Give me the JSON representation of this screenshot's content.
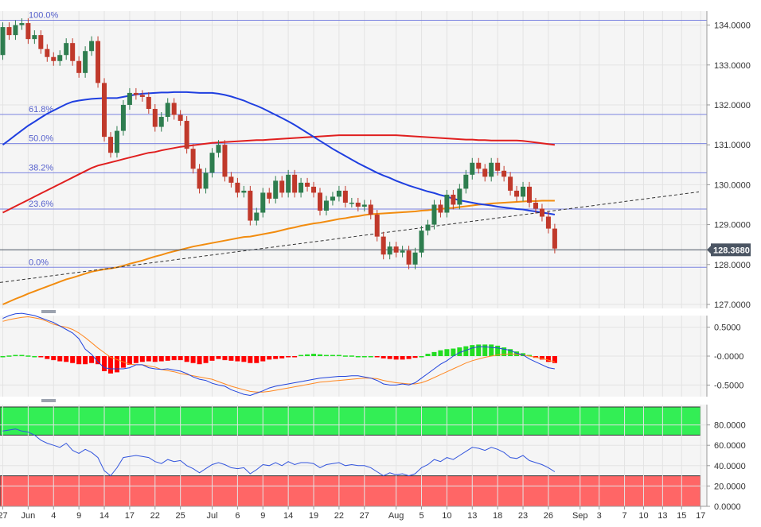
{
  "chart_data": [
    {
      "type": "candlestick",
      "title": "",
      "ylim": [
        126.9,
        134.35
      ],
      "y_ticks": [
        "134.0000",
        "133.0000",
        "132.0000",
        "131.0000",
        "130.0000",
        "129.0000",
        "128.0000",
        "127.0000"
      ],
      "y_tick_values": [
        134,
        133,
        132,
        131,
        130,
        129,
        128,
        127
      ],
      "last_price": {
        "value": 128.368,
        "label": "128.3680",
        "color": "#4b5563"
      },
      "fibonacci": [
        {
          "label": "100.0%",
          "value": 134.12
        },
        {
          "label": "61.8%",
          "value": 131.76
        },
        {
          "label": "50.0%",
          "value": 131.03
        },
        {
          "label": "38.2%",
          "value": 130.3
        },
        {
          "label": "23.6%",
          "value": 129.39
        },
        {
          "label": "0.0%",
          "value": 127.93
        }
      ],
      "candle_colors": {
        "up": "#2e7d4f",
        "down": "#c0392b"
      },
      "sma_colors": {
        "sma_fast": "#f28c0f",
        "sma_mid": "#1f3fe0",
        "sma_slow": "#e01f1f"
      },
      "trendline": {
        "start": 127.55,
        "end": 129.82,
        "color": "#333333"
      },
      "closes": [
        133.95,
        133.75,
        134.0,
        134.05,
        133.65,
        133.75,
        133.4,
        133.2,
        133.1,
        133.25,
        133.55,
        133.1,
        132.8,
        133.35,
        133.6,
        132.55,
        131.2,
        130.8,
        131.35,
        132.0,
        132.3,
        132.25,
        132.2,
        131.9,
        131.45,
        131.7,
        132.05,
        131.75,
        131.6,
        130.9,
        130.4,
        129.9,
        130.3,
        130.8,
        131.0,
        130.2,
        130.05,
        129.8,
        129.85,
        129.1,
        129.3,
        129.8,
        129.65,
        130.1,
        129.8,
        130.25,
        129.8,
        130.05,
        129.95,
        129.8,
        129.35,
        129.6,
        129.7,
        129.85,
        129.55,
        129.55,
        129.45,
        129.5,
        129.25,
        128.7,
        128.25,
        128.45,
        128.3,
        128.35,
        128.0,
        128.3,
        128.85,
        129.0,
        129.5,
        129.3,
        129.75,
        129.5,
        129.9,
        130.25,
        130.55,
        130.4,
        130.2,
        130.55,
        130.35,
        130.2,
        129.85,
        129.7,
        129.95,
        129.55,
        129.4,
        129.2,
        128.9,
        128.4
      ],
      "sma_fast": [
        127.0,
        127.07,
        127.14,
        127.2,
        127.27,
        127.33,
        127.39,
        127.45,
        127.51,
        127.57,
        127.63,
        127.67,
        127.72,
        127.77,
        127.82,
        127.85,
        127.88,
        127.9,
        127.93,
        127.97,
        128.02,
        128.06,
        128.1,
        128.15,
        128.2,
        128.24,
        128.29,
        128.33,
        128.37,
        128.41,
        128.45,
        128.48,
        128.51,
        128.54,
        128.57,
        128.6,
        128.63,
        128.66,
        128.69,
        128.7,
        128.73,
        128.76,
        128.79,
        128.82,
        128.86,
        128.9,
        128.93,
        128.97,
        129.0,
        129.03,
        129.05,
        129.08,
        129.11,
        129.14,
        129.16,
        129.19,
        129.21,
        129.24,
        129.26,
        129.27,
        129.28,
        129.29,
        129.3,
        129.31,
        129.32,
        129.33,
        129.35,
        129.36,
        129.38,
        129.39,
        129.41,
        129.42,
        129.44,
        129.46,
        129.48,
        129.5,
        129.51,
        129.53,
        129.54,
        129.55,
        129.56,
        129.57,
        129.58,
        129.59,
        129.59,
        129.6,
        129.6,
        129.6
      ],
      "sma_mid": [
        131.0,
        131.12,
        131.24,
        131.36,
        131.48,
        131.58,
        131.68,
        131.78,
        131.86,
        131.94,
        132.02,
        132.08,
        132.11,
        132.13,
        132.15,
        132.16,
        132.17,
        132.17,
        132.17,
        132.2,
        132.23,
        132.26,
        132.28,
        132.29,
        132.3,
        132.31,
        132.31,
        132.32,
        132.32,
        132.32,
        132.31,
        132.3,
        132.3,
        132.3,
        132.28,
        132.25,
        132.21,
        132.16,
        132.11,
        132.04,
        131.98,
        131.91,
        131.83,
        131.75,
        131.67,
        131.59,
        131.5,
        131.4,
        131.3,
        131.2,
        131.1,
        131.0,
        130.9,
        130.81,
        130.72,
        130.63,
        130.54,
        130.46,
        130.38,
        130.3,
        130.23,
        130.17,
        130.1,
        130.04,
        129.98,
        129.93,
        129.88,
        129.83,
        129.79,
        129.74,
        129.7,
        129.65,
        129.61,
        129.58,
        129.55,
        129.52,
        129.5,
        129.48,
        129.45,
        129.43,
        129.41,
        129.39,
        129.38,
        129.35,
        129.33,
        129.3,
        129.28,
        129.25
      ],
      "sma_slow": [
        129.3,
        129.38,
        129.46,
        129.54,
        129.62,
        129.7,
        129.78,
        129.86,
        129.94,
        130.02,
        130.1,
        130.18,
        130.26,
        130.34,
        130.42,
        130.48,
        130.52,
        130.56,
        130.6,
        130.64,
        130.68,
        130.72,
        130.76,
        130.8,
        130.82,
        130.86,
        130.89,
        130.92,
        130.95,
        130.97,
        130.99,
        131.01,
        131.03,
        131.05,
        131.06,
        131.07,
        131.08,
        131.09,
        131.1,
        131.11,
        131.12,
        131.12,
        131.13,
        131.14,
        131.15,
        131.16,
        131.17,
        131.18,
        131.19,
        131.2,
        131.21,
        131.22,
        131.23,
        131.24,
        131.24,
        131.24,
        131.24,
        131.24,
        131.24,
        131.24,
        131.24,
        131.24,
        131.24,
        131.23,
        131.22,
        131.21,
        131.2,
        131.19,
        131.18,
        131.17,
        131.16,
        131.15,
        131.14,
        131.13,
        131.13,
        131.12,
        131.12,
        131.11,
        131.11,
        131.11,
        131.11,
        131.11,
        131.1,
        131.08,
        131.06,
        131.04,
        131.02,
        131.0
      ]
    },
    {
      "type": "bar+line",
      "ylim": [
        -0.7,
        0.7
      ],
      "y_ticks": [
        "0.5000",
        "-0.0000",
        "-0.5000"
      ],
      "y_tick_values": [
        0.5,
        0,
        -0.5
      ],
      "colors": {
        "hist_pos": "#22dd22",
        "hist_neg": "#ff0000",
        "macd": "#2244dd",
        "signal": "#ff8822"
      },
      "histogram": [
        0.0,
        0.01,
        0.02,
        0.02,
        0.01,
        0.0,
        -0.02,
        -0.05,
        -0.07,
        -0.09,
        -0.1,
        -0.12,
        -0.14,
        -0.14,
        -0.12,
        -0.14,
        -0.26,
        -0.3,
        -0.28,
        -0.2,
        -0.15,
        -0.12,
        -0.1,
        -0.09,
        -0.1,
        -0.09,
        -0.08,
        -0.07,
        -0.07,
        -0.1,
        -0.12,
        -0.14,
        -0.12,
        -0.08,
        -0.05,
        -0.07,
        -0.08,
        -0.09,
        -0.1,
        -0.12,
        -0.12,
        -0.09,
        -0.06,
        -0.05,
        -0.04,
        -0.02,
        -0.01,
        0.02,
        0.03,
        0.04,
        0.03,
        0.02,
        0.02,
        0.02,
        0.01,
        0.01,
        0.0,
        0.0,
        0.0,
        -0.02,
        -0.04,
        -0.05,
        -0.06,
        -0.06,
        -0.05,
        -0.03,
        0.0,
        0.04,
        0.07,
        0.1,
        0.12,
        0.13,
        0.15,
        0.17,
        0.19,
        0.2,
        0.2,
        0.2,
        0.18,
        0.15,
        0.12,
        0.08,
        0.05,
        0.02,
        -0.03,
        -0.06,
        -0.1,
        -0.12
      ],
      "macd": [
        0.65,
        0.7,
        0.73,
        0.74,
        0.72,
        0.7,
        0.66,
        0.62,
        0.58,
        0.52,
        0.46,
        0.4,
        0.3,
        0.12,
        0.03,
        -0.1,
        -0.2,
        -0.22,
        -0.22,
        -0.22,
        -0.2,
        -0.15,
        -0.15,
        -0.2,
        -0.22,
        -0.23,
        -0.22,
        -0.24,
        -0.26,
        -0.3,
        -0.36,
        -0.4,
        -0.42,
        -0.47,
        -0.5,
        -0.52,
        -0.58,
        -0.62,
        -0.66,
        -0.68,
        -0.64,
        -0.6,
        -0.55,
        -0.52,
        -0.5,
        -0.48,
        -0.46,
        -0.44,
        -0.42,
        -0.4,
        -0.38,
        -0.37,
        -0.36,
        -0.35,
        -0.35,
        -0.34,
        -0.34,
        -0.36,
        -0.38,
        -0.42,
        -0.48,
        -0.5,
        -0.5,
        -0.48,
        -0.5,
        -0.46,
        -0.38,
        -0.3,
        -0.22,
        -0.14,
        -0.08,
        0.0,
        0.06,
        0.1,
        0.14,
        0.16,
        0.16,
        0.15,
        0.14,
        0.12,
        0.1,
        0.05,
        0.02,
        -0.05,
        -0.1,
        -0.15,
        -0.2,
        -0.22
      ],
      "signal": [
        0.6,
        0.63,
        0.65,
        0.67,
        0.68,
        0.66,
        0.64,
        0.6,
        0.55,
        0.52,
        0.5,
        0.46,
        0.4,
        0.32,
        0.23,
        0.14,
        0.06,
        -0.02,
        -0.06,
        -0.1,
        -0.14,
        -0.15,
        -0.15,
        -0.17,
        -0.19,
        -0.23,
        -0.25,
        -0.27,
        -0.3,
        -0.32,
        -0.34,
        -0.36,
        -0.38,
        -0.4,
        -0.44,
        -0.48,
        -0.52,
        -0.55,
        -0.58,
        -0.61,
        -0.62,
        -0.62,
        -0.61,
        -0.59,
        -0.57,
        -0.55,
        -0.53,
        -0.51,
        -0.49,
        -0.47,
        -0.45,
        -0.44,
        -0.43,
        -0.42,
        -0.41,
        -0.4,
        -0.39,
        -0.38,
        -0.38,
        -0.39,
        -0.42,
        -0.44,
        -0.46,
        -0.47,
        -0.48,
        -0.48,
        -0.46,
        -0.42,
        -0.37,
        -0.32,
        -0.27,
        -0.22,
        -0.17,
        -0.12,
        -0.08,
        -0.05,
        -0.02,
        0.0,
        0.02,
        0.03,
        0.04,
        0.03,
        0.02,
        0.0,
        -0.02,
        -0.04,
        -0.07,
        -0.1
      ]
    },
    {
      "type": "line",
      "ylim": [
        0,
        100
      ],
      "y_ticks": [
        "80.0000",
        "60.0000",
        "40.0000",
        "20.0000",
        "0.0000"
      ],
      "y_tick_values": [
        80,
        60,
        40,
        20,
        0
      ],
      "overbought": 70,
      "oversold": 30,
      "colors": {
        "overbought_zone": "#33ee55",
        "oversold_zone": "#ff6666",
        "rsi": "#3355dd"
      },
      "rsi": [
        74,
        75,
        76,
        74,
        73,
        70,
        65,
        62,
        60,
        58,
        62,
        55,
        52,
        56,
        53,
        48,
        35,
        30,
        38,
        48,
        49,
        50,
        49,
        48,
        44,
        42,
        46,
        44,
        45,
        40,
        37,
        33,
        37,
        41,
        43,
        41,
        38,
        37,
        38,
        32,
        36,
        41,
        40,
        43,
        40,
        44,
        41,
        43,
        43,
        42,
        38,
        41,
        42,
        43,
        40,
        41,
        40,
        40,
        38,
        34,
        30,
        33,
        31,
        32,
        30,
        32,
        38,
        41,
        46,
        44,
        48,
        46,
        50,
        54,
        58,
        57,
        55,
        58,
        56,
        53,
        48,
        47,
        50,
        45,
        43,
        41,
        38,
        34
      ]
    }
  ],
  "x_axis": {
    "labels": [
      "27",
      "Jun",
      "4",
      "9",
      "14",
      "17",
      "22",
      "25",
      "Jul",
      "6",
      "9",
      "14",
      "19",
      "22",
      "27",
      "Aug",
      "5",
      "10",
      "13",
      "18",
      "23",
      "26",
      "Sep",
      "3",
      "7",
      "10",
      "13",
      "15",
      "17"
    ],
    "label_bars": [
      0,
      4,
      8,
      12,
      16,
      20,
      24,
      28,
      33,
      37,
      41,
      45,
      49,
      53,
      57,
      62,
      66,
      70,
      74,
      78,
      82,
      86,
      91,
      94,
      98,
      101,
      104,
      107,
      110
    ]
  }
}
